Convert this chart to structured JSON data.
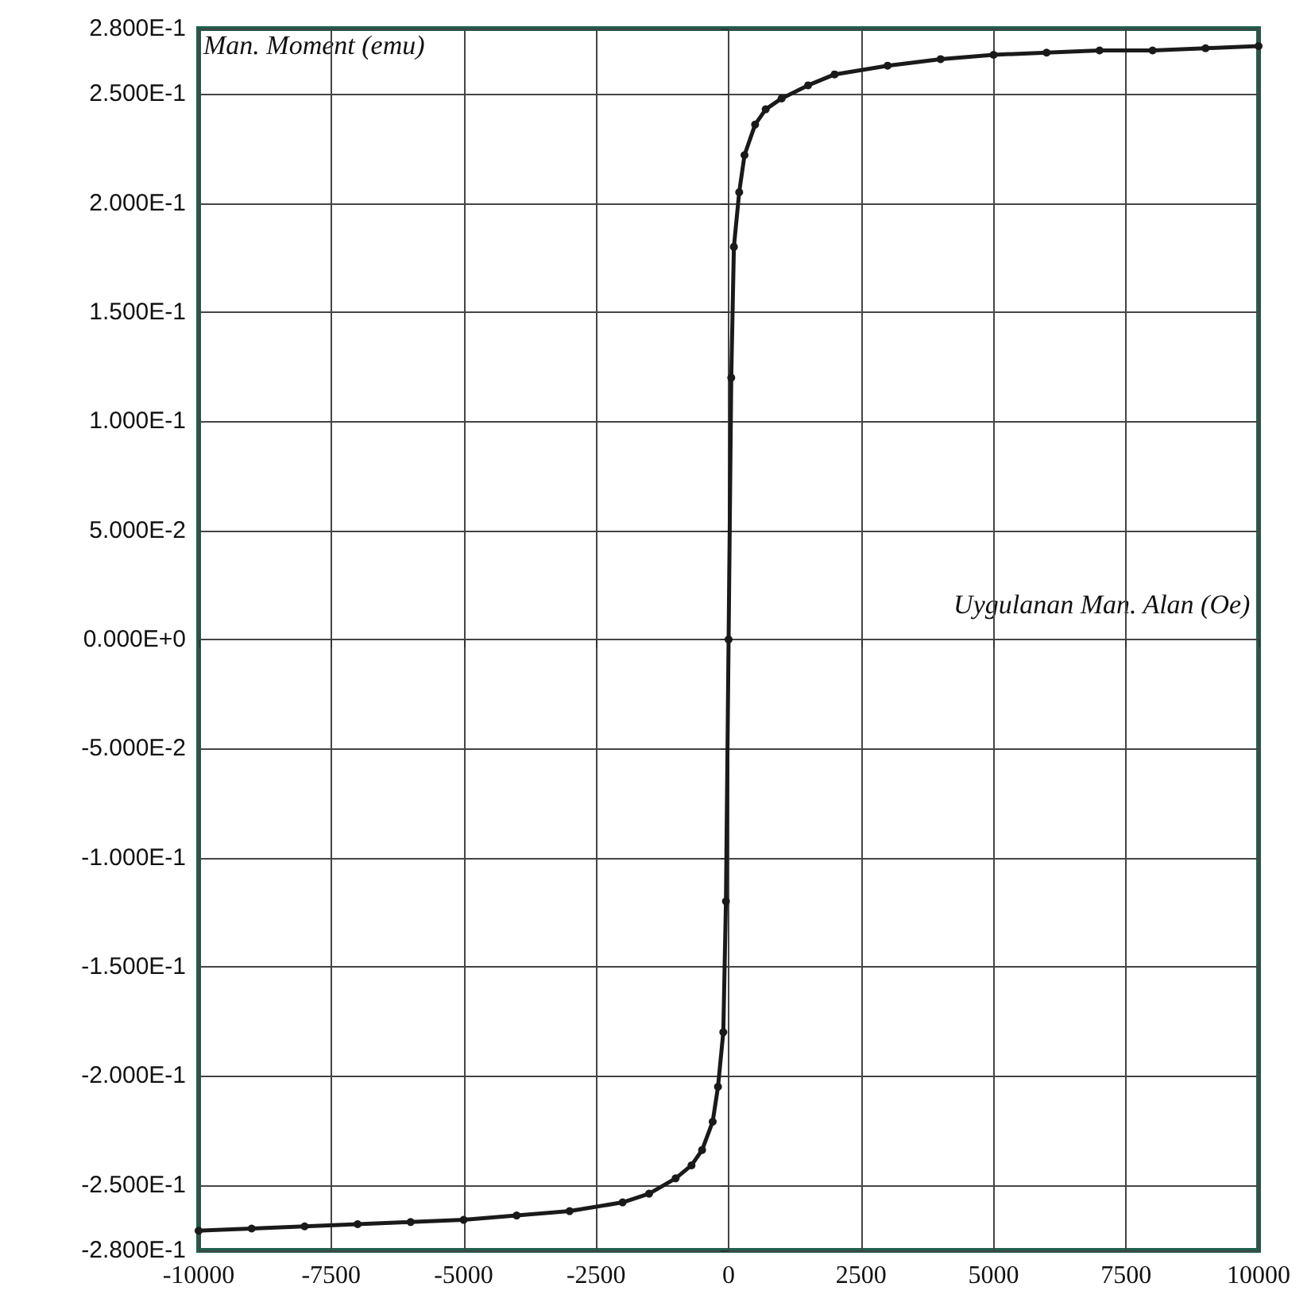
{
  "chart_data": {
    "type": "line",
    "xlabel": "Uygulanan Man. Alan (Oe)",
    "ylabel": "Man. Moment (emu)",
    "x": [
      -10000,
      -9000,
      -8000,
      -7000,
      -6000,
      -5000,
      -4000,
      -3000,
      -2000,
      -1500,
      -1000,
      -700,
      -500,
      -300,
      -200,
      -100,
      -50,
      0,
      50,
      100,
      200,
      300,
      500,
      700,
      1000,
      1500,
      2000,
      3000,
      4000,
      5000,
      6000,
      7000,
      8000,
      9000,
      10000
    ],
    "series": [
      {
        "color": "#1a1a1a",
        "values": [
          -0.271,
          -0.27,
          -0.269,
          -0.268,
          -0.267,
          -0.266,
          -0.264,
          -0.262,
          -0.258,
          -0.254,
          -0.247,
          -0.241,
          -0.234,
          -0.221,
          -0.205,
          -0.18,
          -0.12,
          0,
          0.12,
          0.18,
          0.205,
          0.222,
          0.236,
          0.243,
          0.248,
          0.254,
          0.259,
          0.263,
          0.266,
          0.268,
          0.269,
          0.27,
          0.27,
          0.271,
          0.272
        ]
      }
    ],
    "xlim": [
      -10000,
      10000
    ],
    "xticks": [
      -10000,
      -7500,
      -5000,
      -2500,
      0,
      2500,
      5000,
      7500,
      10000
    ],
    "ylim": [
      -0.28,
      0.28
    ],
    "yticks": [
      {
        "value": -0.28,
        "label": "-2.800E-1"
      },
      {
        "value": -0.25,
        "label": "-2.500E-1"
      },
      {
        "value": -0.2,
        "label": "-2.000E-1"
      },
      {
        "value": -0.15,
        "label": "-1.500E-1"
      },
      {
        "value": -0.1,
        "label": "-1.000E-1"
      },
      {
        "value": -0.05,
        "label": "-5.000E-2"
      },
      {
        "value": 0,
        "label": "0.000E+0"
      },
      {
        "value": 0.05,
        "label": "5.000E-2"
      },
      {
        "value": 0.1,
        "label": "1.000E-1"
      },
      {
        "value": 0.15,
        "label": "1.500E-1"
      },
      {
        "value": 0.2,
        "label": "2.000E-1"
      },
      {
        "value": 0.25,
        "label": "2.500E-1"
      },
      {
        "value": 0.28,
        "label": "2.800E-1"
      }
    ],
    "grid": true,
    "marker": "circle",
    "line_style": "solid"
  }
}
